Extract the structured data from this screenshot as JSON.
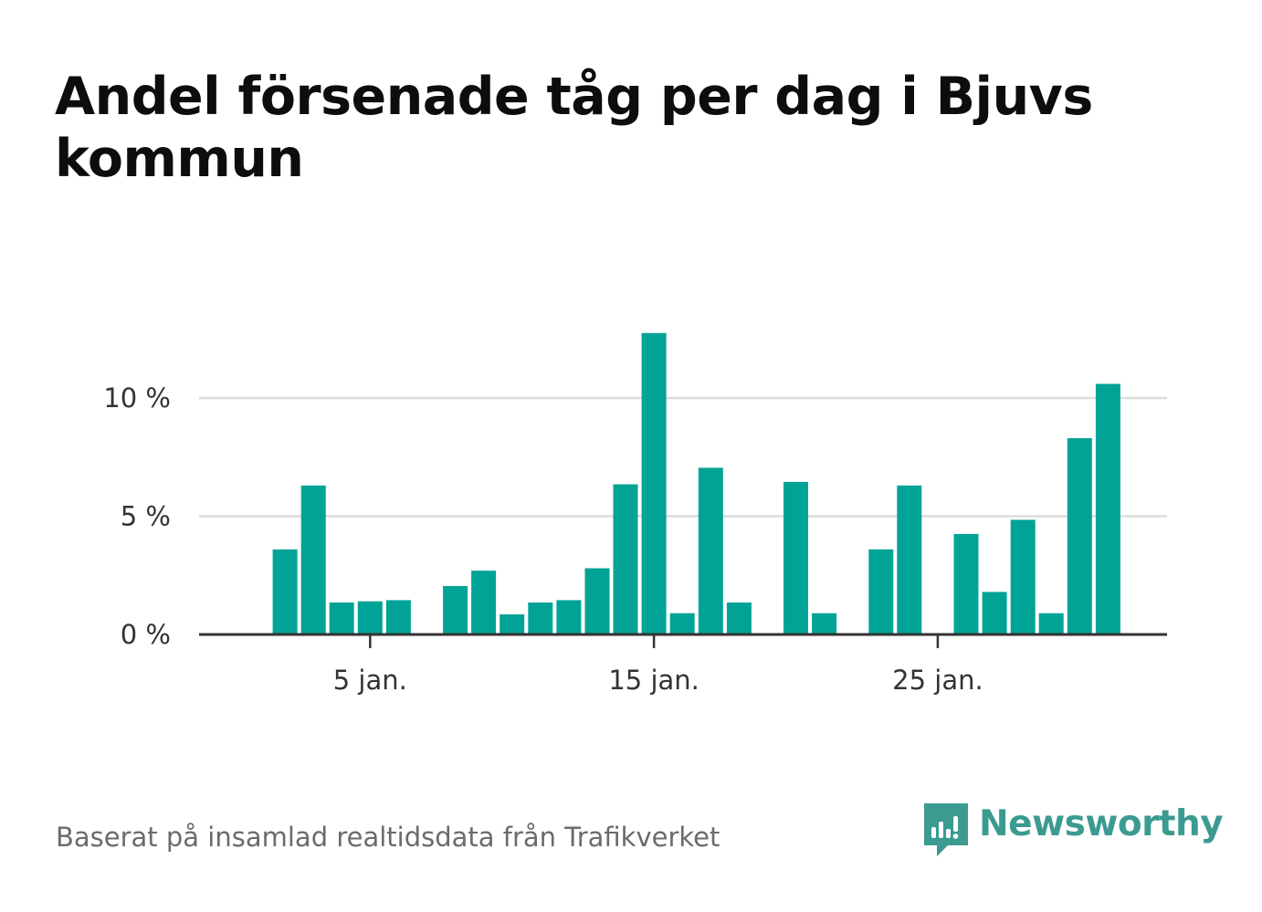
{
  "title": "Andel försenade tåg per dag i Bjuvs kommun",
  "source": "Baserat på insamlad realtidsdata från Trafikverket",
  "brand": {
    "name": "Newsworthy",
    "icon": "newsworthy-logo-icon",
    "color": "#3b9b91"
  },
  "colors": {
    "bar": "#00a396",
    "grid": "#dcdcdc",
    "axis": "#333333"
  },
  "chart_data": {
    "type": "bar",
    "x": [
      1,
      2,
      3,
      4,
      5,
      6,
      7,
      8,
      9,
      10,
      11,
      12,
      13,
      14,
      15,
      16,
      17,
      18,
      19,
      20,
      21,
      22,
      23,
      24,
      25,
      26,
      27,
      28,
      29,
      30,
      31
    ],
    "values": [
      0,
      3.6,
      6.3,
      1.35,
      1.4,
      1.45,
      0,
      2.05,
      2.7,
      0.85,
      1.35,
      1.45,
      2.8,
      6.35,
      12.75,
      0.9,
      7.05,
      1.35,
      0,
      6.45,
      0.9,
      0,
      3.6,
      6.3,
      0,
      4.25,
      1.8,
      4.85,
      0.9,
      8.3,
      10.6
    ],
    "xticks": [
      {
        "x": 5,
        "label": "5 jan."
      },
      {
        "x": 15,
        "label": "15 jan."
      },
      {
        "x": 25,
        "label": "25 jan."
      }
    ],
    "yticks": [
      {
        "y": 0,
        "label": "0 %"
      },
      {
        "y": 5,
        "label": "5 %"
      },
      {
        "y": 10,
        "label": "10 %"
      }
    ],
    "ylim": [
      0,
      15
    ],
    "grid": true,
    "legend": "none"
  }
}
